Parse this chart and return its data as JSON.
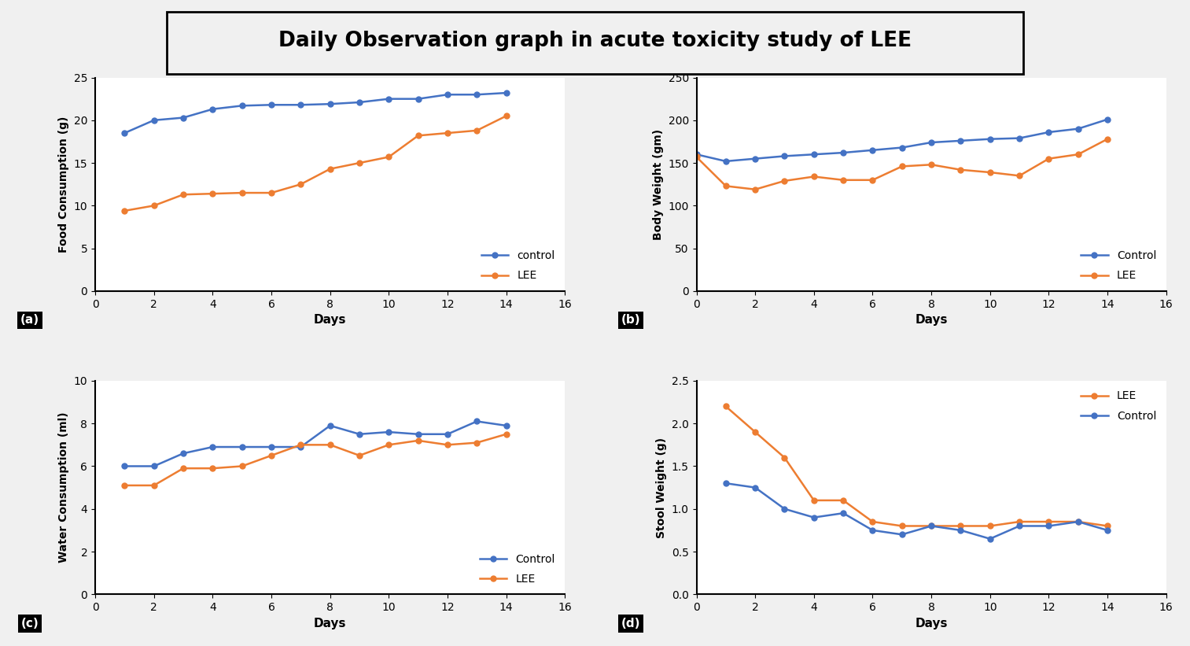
{
  "title": "Daily Observation graph in acute toxicity study of LEE",
  "title_fontsize": 19,
  "blue_color": "#4472C4",
  "orange_color": "#ED7D31",
  "panel_a": {
    "label": "(a)",
    "ylabel": "Food Consumption (g)",
    "xlabel": "Days",
    "xlim": [
      0,
      16
    ],
    "ylim": [
      0,
      25
    ],
    "xticks": [
      0,
      2,
      4,
      6,
      8,
      10,
      12,
      14,
      16
    ],
    "yticks": [
      0,
      5,
      10,
      15,
      20,
      25
    ],
    "control_x": [
      1,
      2,
      3,
      4,
      5,
      6,
      7,
      8,
      9,
      10,
      11,
      12,
      13,
      14
    ],
    "control_y": [
      18.5,
      20.0,
      20.3,
      21.3,
      21.7,
      21.8,
      21.8,
      21.9,
      22.1,
      22.5,
      22.5,
      23.0,
      23.0,
      23.2
    ],
    "lee_x": [
      1,
      2,
      3,
      4,
      5,
      6,
      7,
      8,
      9,
      10,
      11,
      12,
      13,
      14
    ],
    "lee_y": [
      9.4,
      10.0,
      11.3,
      11.4,
      11.5,
      11.5,
      12.5,
      14.3,
      15.0,
      15.7,
      18.2,
      18.5,
      18.8,
      20.5
    ],
    "legend_control": "control",
    "legend_lee": "LEE",
    "legend_loc": "lower right"
  },
  "panel_b": {
    "label": "(b)",
    "ylabel": "Body Weight (gm)",
    "xlabel": "Days",
    "xlim": [
      0,
      16
    ],
    "ylim": [
      0,
      250
    ],
    "xticks": [
      0,
      2,
      4,
      6,
      8,
      10,
      12,
      14,
      16
    ],
    "yticks": [
      0,
      50,
      100,
      150,
      200,
      250
    ],
    "control_x": [
      0,
      1,
      2,
      3,
      4,
      5,
      6,
      7,
      8,
      9,
      10,
      11,
      12,
      13,
      14
    ],
    "control_y": [
      160,
      152,
      155,
      158,
      160,
      162,
      165,
      168,
      174,
      176,
      178,
      179,
      186,
      190,
      201
    ],
    "lee_x": [
      0,
      1,
      2,
      3,
      4,
      5,
      6,
      7,
      8,
      9,
      10,
      11,
      12,
      13,
      14
    ],
    "lee_y": [
      157,
      123,
      119,
      129,
      134,
      130,
      130,
      146,
      148,
      142,
      139,
      135,
      155,
      160,
      178
    ],
    "legend_control": "Control",
    "legend_lee": "LEE",
    "legend_loc": "lower right"
  },
  "panel_c": {
    "label": "(c)",
    "ylabel": "Water Consumption (ml)",
    "xlabel": "Days",
    "xlim": [
      0,
      16
    ],
    "ylim": [
      0,
      10
    ],
    "xticks": [
      0,
      2,
      4,
      6,
      8,
      10,
      12,
      14,
      16
    ],
    "yticks": [
      0,
      2,
      4,
      6,
      8,
      10
    ],
    "control_x": [
      1,
      2,
      3,
      4,
      5,
      6,
      7,
      8,
      9,
      10,
      11,
      12,
      13,
      14
    ],
    "control_y": [
      6.0,
      6.0,
      6.6,
      6.9,
      6.9,
      6.9,
      6.9,
      7.9,
      7.5,
      7.6,
      7.5,
      7.5,
      8.1,
      7.9
    ],
    "lee_x": [
      1,
      2,
      3,
      4,
      5,
      6,
      7,
      8,
      9,
      10,
      11,
      12,
      13,
      14
    ],
    "lee_y": [
      5.1,
      5.1,
      5.9,
      5.9,
      6.0,
      6.5,
      7.0,
      7.0,
      6.5,
      7.0,
      7.2,
      7.0,
      7.1,
      7.5
    ],
    "legend_control": "Control",
    "legend_lee": "LEE",
    "legend_loc": "lower right"
  },
  "panel_d": {
    "label": "(d)",
    "ylabel": "Stool Weight (g)",
    "xlabel": "Days",
    "xlim": [
      0,
      16
    ],
    "ylim": [
      0,
      2.5
    ],
    "xticks": [
      0,
      2,
      4,
      6,
      8,
      10,
      12,
      14,
      16
    ],
    "yticks": [
      0.0,
      0.5,
      1.0,
      1.5,
      2.0,
      2.5
    ],
    "control_x": [
      1,
      2,
      3,
      4,
      5,
      6,
      7,
      8,
      9,
      10,
      11,
      12,
      13,
      14
    ],
    "control_y": [
      1.3,
      1.25,
      1.0,
      0.9,
      0.95,
      0.75,
      0.7,
      0.8,
      0.75,
      0.65,
      0.8,
      0.8,
      0.85,
      0.75
    ],
    "lee_x": [
      1,
      2,
      3,
      4,
      5,
      6,
      7,
      8,
      9,
      10,
      11,
      12,
      13,
      14
    ],
    "lee_y": [
      2.2,
      1.9,
      1.6,
      1.1,
      1.1,
      0.85,
      0.8,
      0.8,
      0.8,
      0.8,
      0.85,
      0.85,
      0.85,
      0.8
    ],
    "legend_lee": "LEE",
    "legend_control": "Control",
    "legend_loc": "upper right"
  },
  "fig_bg": "#f0f0f0",
  "plot_bg": "#ffffff"
}
